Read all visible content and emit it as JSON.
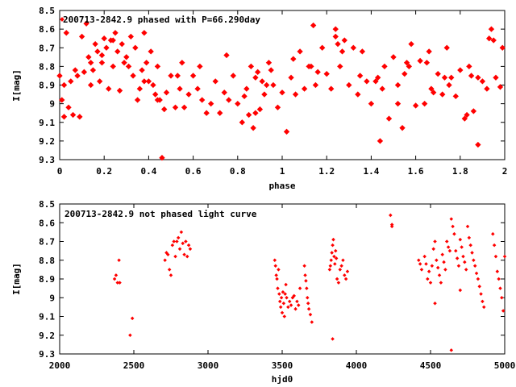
{
  "chart_data": [
    {
      "type": "scatter",
      "title": "200713-2842.9 phased with P=66.290day",
      "xlabel": "phase",
      "ylabel": "I[mag]",
      "xlim": [
        0,
        2
      ],
      "ylim": [
        8.5,
        9.3
      ],
      "y_inverted": true,
      "xticks": [
        0,
        0.2,
        0.4,
        0.6,
        0.8,
        1,
        1.2,
        1.4,
        1.6,
        1.8,
        2
      ],
      "xtick_labels": [
        "0",
        "0.2",
        "0.4",
        "0.6",
        "0.8",
        "1",
        "1.2",
        "1.4",
        "1.6",
        "1.8",
        "2"
      ],
      "yticks": [
        8.5,
        8.6,
        8.7,
        8.8,
        8.9,
        9.0,
        9.1,
        9.2,
        9.3
      ],
      "ytick_labels": [
        "8.5",
        "8.6",
        "8.7",
        "8.8",
        "8.9",
        "9",
        "9.1",
        "9.2",
        "9.3"
      ],
      "marker_color": "#ff0000",
      "grid": false,
      "legend": "top-left",
      "series": [
        {
          "x": [
            0.0,
            0.01,
            0.02,
            0.03,
            0.05,
            0.07,
            0.08,
            0.09,
            0.1,
            0.11,
            0.12,
            0.13,
            0.14,
            0.15,
            0.16,
            0.17,
            0.18,
            0.19,
            0.2,
            0.21,
            0.22,
            0.23,
            0.24,
            0.25,
            0.26,
            0.27,
            0.28,
            0.29,
            0.3,
            0.32,
            0.33,
            0.34,
            0.35,
            0.36,
            0.37,
            0.38,
            0.39,
            0.4,
            0.41,
            0.42,
            0.43,
            0.44,
            0.45,
            0.46,
            0.47,
            0.5,
            0.52,
            0.54,
            0.55,
            0.56,
            0.58,
            0.6,
            0.62,
            0.64,
            0.66,
            0.68,
            0.7,
            0.72,
            0.74,
            0.76,
            0.78,
            0.8,
            0.82,
            0.84,
            0.85,
            0.86,
            0.87,
            0.88,
            0.89,
            0.9,
            0.91,
            0.92,
            0.93,
            0.94,
            0.96,
            0.98,
            1.0,
            1.02,
            1.04,
            1.06,
            1.08,
            1.1,
            1.12,
            1.14,
            1.16,
            1.18,
            1.2,
            1.22,
            1.24,
            1.26,
            1.28,
            1.3,
            1.32,
            1.34,
            1.36,
            1.38,
            1.4,
            1.42,
            1.44,
            1.46,
            1.48,
            1.5,
            1.52,
            1.54,
            1.56,
            1.58,
            1.6,
            1.62,
            1.64,
            1.66,
            1.68,
            1.7,
            1.72,
            1.74,
            1.76,
            1.78,
            1.8,
            1.82,
            1.84,
            1.86,
            1.88,
            1.9,
            1.92,
            1.94,
            1.96,
            1.98,
            1.99,
            0.04,
            0.06,
            0.19,
            0.31,
            0.44,
            0.48,
            0.53,
            0.63,
            0.75,
            0.83,
            0.95,
            1.05,
            1.15,
            1.25,
            1.35,
            1.45,
            1.55,
            1.65,
            1.75,
            1.85,
            1.95,
            1.13,
            1.27,
            1.43,
            1.57,
            1.67,
            1.73,
            1.83,
            1.93,
            0.02,
            0.14,
            0.24,
            0.38,
            0.88,
            1.24,
            1.52,
            1.88
          ],
          "y": [
            8.85,
            8.98,
            9.07,
            8.62,
            8.88,
            8.82,
            8.85,
            9.07,
            8.64,
            8.83,
            8.57,
            8.75,
            8.9,
            8.82,
            8.68,
            8.72,
            8.88,
            8.78,
            8.65,
            8.7,
            8.92,
            8.66,
            8.8,
            8.62,
            8.72,
            8.93,
            8.68,
            8.78,
            8.75,
            8.64,
            8.85,
            8.7,
            8.98,
            8.92,
            8.82,
            8.62,
            8.78,
            8.88,
            8.72,
            8.9,
            8.95,
            8.8,
            8.98,
            9.29,
            9.03,
            8.85,
            9.02,
            8.92,
            8.78,
            9.02,
            8.95,
            8.85,
            8.92,
            8.98,
            9.05,
            9.0,
            8.88,
            9.05,
            8.94,
            8.98,
            8.85,
            9.0,
            9.1,
            8.92,
            9.06,
            8.8,
            9.13,
            9.05,
            8.83,
            9.03,
            8.88,
            8.95,
            8.9,
            8.78,
            8.9,
            9.02,
            8.94,
            9.15,
            8.86,
            8.95,
            8.72,
            8.92,
            8.8,
            8.58,
            8.83,
            8.7,
            8.84,
            8.92,
            8.6,
            8.8,
            8.66,
            8.9,
            8.7,
            8.95,
            8.72,
            8.88,
            9.0,
            8.88,
            9.2,
            8.8,
            9.08,
            8.75,
            8.9,
            9.13,
            8.78,
            8.68,
            9.01,
            8.77,
            9.0,
            8.72,
            8.94,
            8.84,
            8.95,
            8.7,
            8.86,
            8.96,
            8.82,
            9.08,
            8.8,
            9.04,
            9.22,
            8.88,
            8.92,
            8.6,
            8.86,
            8.91,
            8.7,
            9.02,
            9.06,
            8.74,
            8.8,
            8.98,
            8.94,
            8.85,
            8.8,
            8.74,
            8.96,
            8.82,
            8.76,
            8.9,
            8.68,
            8.85,
            8.92,
            8.84,
            8.78,
            8.9,
            8.85,
            8.66,
            8.8,
            8.72,
            8.86,
            8.8,
            8.92,
            8.86,
            9.06,
            8.65,
            8.9,
            8.78,
            8.66,
            8.88,
            8.86,
            8.64,
            9.0,
            8.86
          ]
        }
      ]
    },
    {
      "type": "scatter",
      "title": "200713-2842.9 not phased light curve",
      "xlabel": "hjd0",
      "ylabel": "I[mag]",
      "xlim": [
        2000,
        5000
      ],
      "ylim": [
        8.5,
        9.3
      ],
      "y_inverted": true,
      "xticks": [
        2000,
        2500,
        3000,
        3500,
        4000,
        4500,
        5000
      ],
      "xtick_labels": [
        "2000",
        "2500",
        "3000",
        "3500",
        "4000",
        "4500",
        "5000"
      ],
      "yticks": [
        8.5,
        8.6,
        8.7,
        8.8,
        8.9,
        9.0,
        9.1,
        9.2,
        9.3
      ],
      "ytick_labels": [
        "8.5",
        "8.6",
        "8.7",
        "8.8",
        "8.9",
        "9",
        "9.1",
        "9.2",
        "9.3"
      ],
      "marker_color": "#ff0000",
      "grid": false,
      "legend": "top-left",
      "series": [
        {
          "x": [
            2370,
            2380,
            2390,
            2400,
            2405,
            2475,
            2490,
            2710,
            2720,
            2730,
            2740,
            2750,
            2760,
            2770,
            2780,
            2790,
            2800,
            2810,
            2820,
            2830,
            2840,
            2850,
            2860,
            2870,
            2880,
            3450,
            3455,
            3460,
            3465,
            3470,
            3475,
            3480,
            3485,
            3490,
            3495,
            3500,
            3505,
            3510,
            3515,
            3520,
            3525,
            3530,
            3540,
            3550,
            3560,
            3570,
            3580,
            3590,
            3600,
            3610,
            3620,
            3650,
            3655,
            3660,
            3665,
            3670,
            3675,
            3680,
            3690,
            3700,
            3820,
            3825,
            3830,
            3835,
            3840,
            3845,
            3850,
            3855,
            3860,
            3865,
            3870,
            3880,
            3890,
            3900,
            3910,
            3920,
            3930,
            3940,
            4230,
            4240,
            4420,
            4430,
            4440,
            4460,
            4470,
            4480,
            4490,
            4500,
            4510,
            4520,
            4530,
            4540,
            4550,
            4560,
            4570,
            4580,
            4590,
            4600,
            4610,
            4620,
            4630,
            4640,
            4650,
            4660,
            4670,
            4680,
            4690,
            4700,
            4710,
            4720,
            4730,
            4740,
            4750,
            4760,
            4770,
            4780,
            4790,
            4800,
            4810,
            4820,
            4830,
            4840,
            4850,
            4860,
            4920,
            4930,
            4940,
            4950,
            4960,
            4970,
            4980,
            4990,
            5000,
            3840,
            4240,
            4530,
            4640,
            4700
          ],
          "y": [
            8.9,
            8.88,
            8.92,
            8.8,
            8.92,
            9.2,
            9.11,
            8.8,
            8.76,
            8.77,
            8.85,
            8.88,
            8.72,
            8.7,
            8.78,
            8.7,
            8.68,
            8.74,
            8.65,
            8.71,
            8.77,
            8.7,
            8.78,
            8.72,
            8.74,
            8.8,
            8.83,
            8.88,
            8.9,
            8.95,
            8.85,
            8.98,
            9.02,
            9.05,
            9.0,
            9.08,
            8.97,
            9.03,
            9.1,
            8.98,
            8.93,
            9.0,
            9.05,
            9.02,
            9.04,
            9.0,
            8.99,
            9.06,
            9.02,
            9.04,
            8.95,
            8.83,
            8.88,
            8.91,
            8.95,
            9.0,
            9.03,
            9.06,
            9.09,
            9.13,
            8.85,
            8.83,
            8.8,
            8.76,
            8.72,
            8.69,
            8.78,
            8.82,
            8.75,
            8.79,
            8.9,
            8.92,
            8.85,
            8.83,
            8.8,
            8.88,
            8.9,
            8.86,
            8.56,
            8.61,
            8.8,
            8.82,
            8.85,
            8.78,
            8.82,
            8.9,
            8.86,
            8.92,
            8.83,
            8.74,
            8.7,
            8.8,
            8.84,
            8.88,
            8.92,
            8.77,
            8.81,
            8.85,
            8.7,
            8.73,
            8.75,
            8.58,
            8.62,
            8.66,
            8.75,
            8.79,
            8.83,
            8.69,
            8.73,
            8.78,
            8.81,
            8.85,
            8.62,
            8.68,
            8.72,
            8.76,
            8.8,
            8.83,
            8.87,
            8.9,
            8.94,
            8.98,
            9.02,
            9.05,
            8.66,
            8.72,
            8.78,
            8.86,
            8.9,
            8.95,
            9.0,
            9.07,
            8.78,
            9.22,
            8.62,
            9.03,
            9.28,
            8.96
          ],
          "x_small": [],
          "note_hidden": ""
        }
      ]
    }
  ]
}
